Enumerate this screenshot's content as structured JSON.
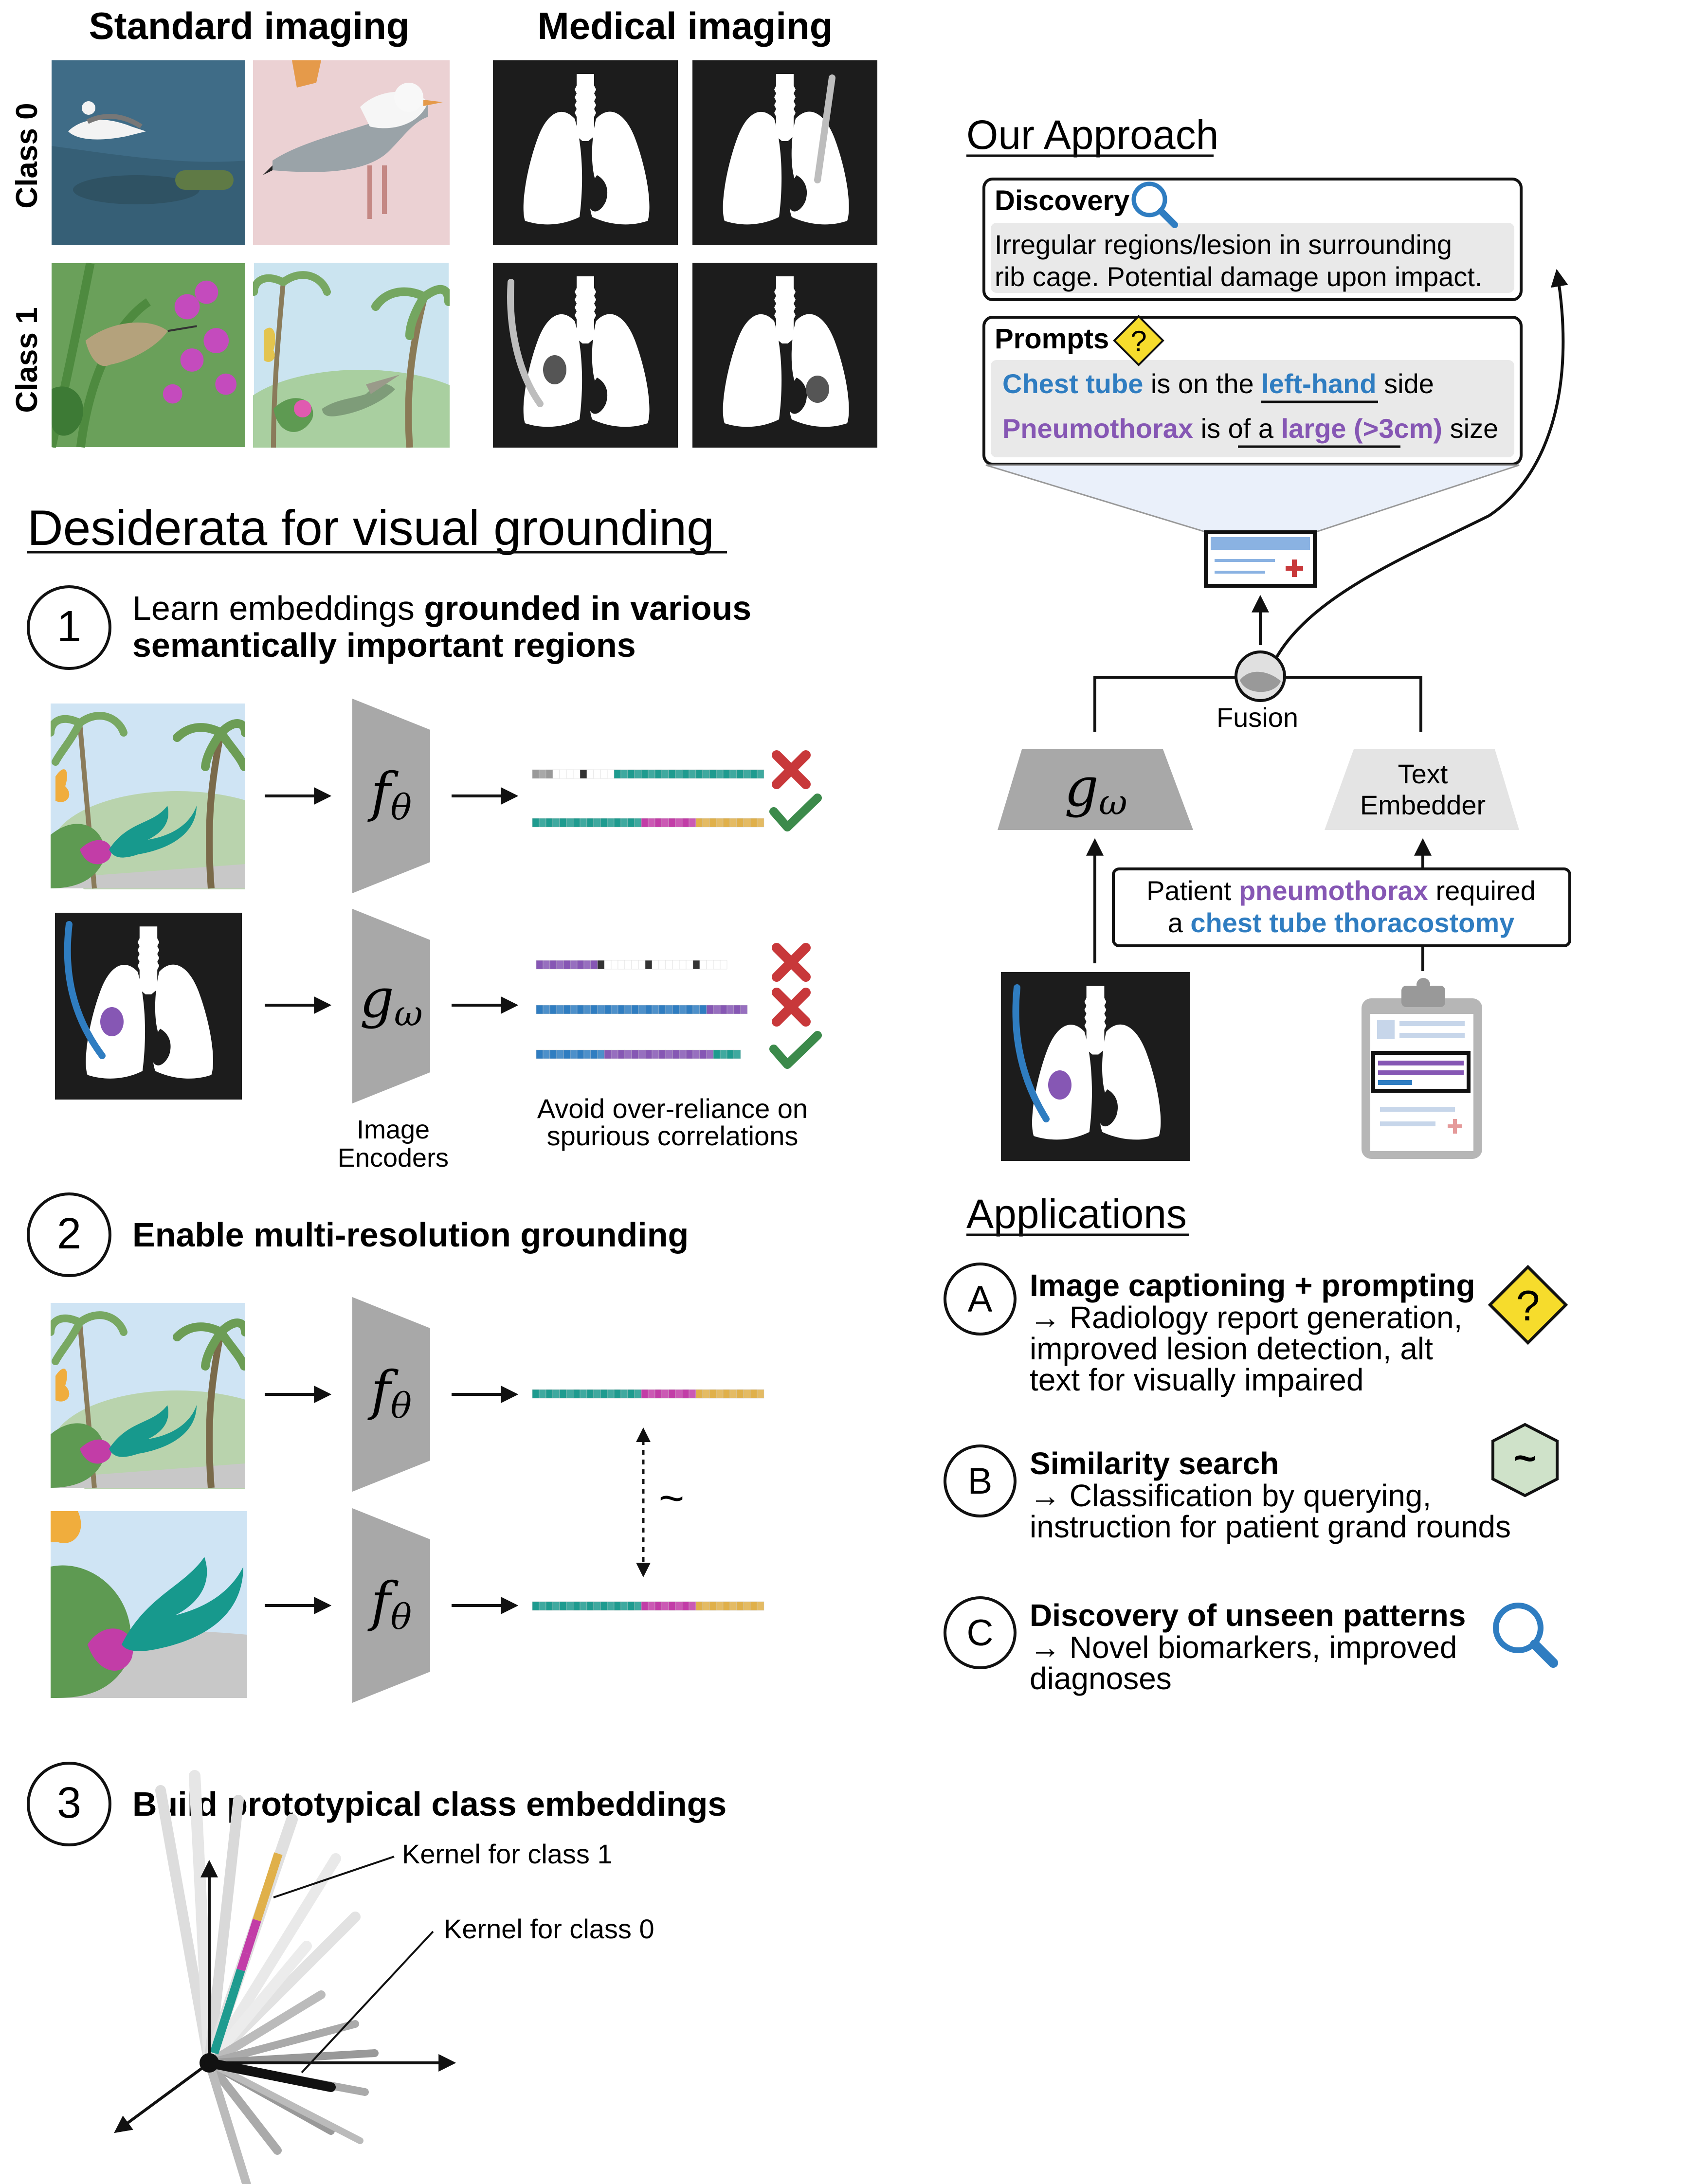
{
  "top": {
    "standard_title": "Standard imaging",
    "medical_title": "Medical imaging",
    "class0": "Class 0",
    "class1": "Class 1"
  },
  "desiderata": {
    "title": "Desiderata for visual grounding",
    "d1": {
      "num": "1",
      "line1_regular": "Learn embeddings ",
      "line1_bold": "grounded in various",
      "line2_bold": "semantically important regions",
      "encoder_f": "f",
      "encoder_f_sub": "θ",
      "encoder_g": "g",
      "encoder_g_sub": "ω",
      "image_encoders": [
        "Image",
        "Encoders"
      ],
      "avoid": [
        "Avoid over-reliance on",
        "spurious correlations"
      ]
    },
    "d2": {
      "num": "2",
      "title": "Enable multi-resolution grounding",
      "similar": "~"
    },
    "d3": {
      "num": "3",
      "title": "Build prototypical class embeddings",
      "kernel1": "Kernel for class 1",
      "kernel0": "Kernel for class 0"
    }
  },
  "approach": {
    "title": "Our Approach",
    "discovery_label": "Discovery",
    "discovery_lines": [
      "Irregular regions/lesion in surrounding",
      "rib cage. Potential damage upon impact."
    ],
    "prompts_label": "Prompts",
    "prompt1": {
      "a": "Chest tube",
      "b": " is on the ",
      "c": "left-hand",
      "d": " side"
    },
    "prompt2": {
      "a": "Pneumothorax",
      "b": " is of a ",
      "c": "large (>3cm)",
      "d": " size"
    },
    "fusion": "Fusion",
    "g": "g",
    "g_sub": "ω",
    "text_embedder": [
      "Text",
      "Embedder"
    ],
    "report": {
      "a": "Patient ",
      "b": "pneumothorax",
      "c": " required",
      "d": "a ",
      "e": "chest tube thoracostomy"
    },
    "question_mark": "?"
  },
  "applications": {
    "title": "Applications",
    "items": [
      {
        "letter": "A",
        "title": "Image captioning + prompting",
        "lines": [
          "→ Radiology report generation,",
          "improved lesion detection, alt",
          "text for visually impaired"
        ],
        "icon": "question-diamond-icon",
        "icon_text": "?"
      },
      {
        "letter": "B",
        "title": "Similarity search",
        "lines": [
          "→ Classification by querying,",
          "instruction for patient grand rounds"
        ],
        "icon": "tilde-hexagon-icon",
        "icon_text": "~"
      },
      {
        "letter": "C",
        "title": "Discovery of unseen patterns",
        "lines": [
          "→ Novel biomarkers, improved",
          "diagnoses"
        ],
        "icon": "magnifier-icon"
      }
    ]
  },
  "colors": {
    "blue": "#2f7dc1",
    "purple": "#8657b4",
    "teal": "#1e9b8f",
    "magenta": "#c23da7",
    "gold": "#e0b04a",
    "red": "#c8383a",
    "green": "#3c8a4b",
    "yellow": "#f6dc2c",
    "gray": "#bdbdbd"
  }
}
